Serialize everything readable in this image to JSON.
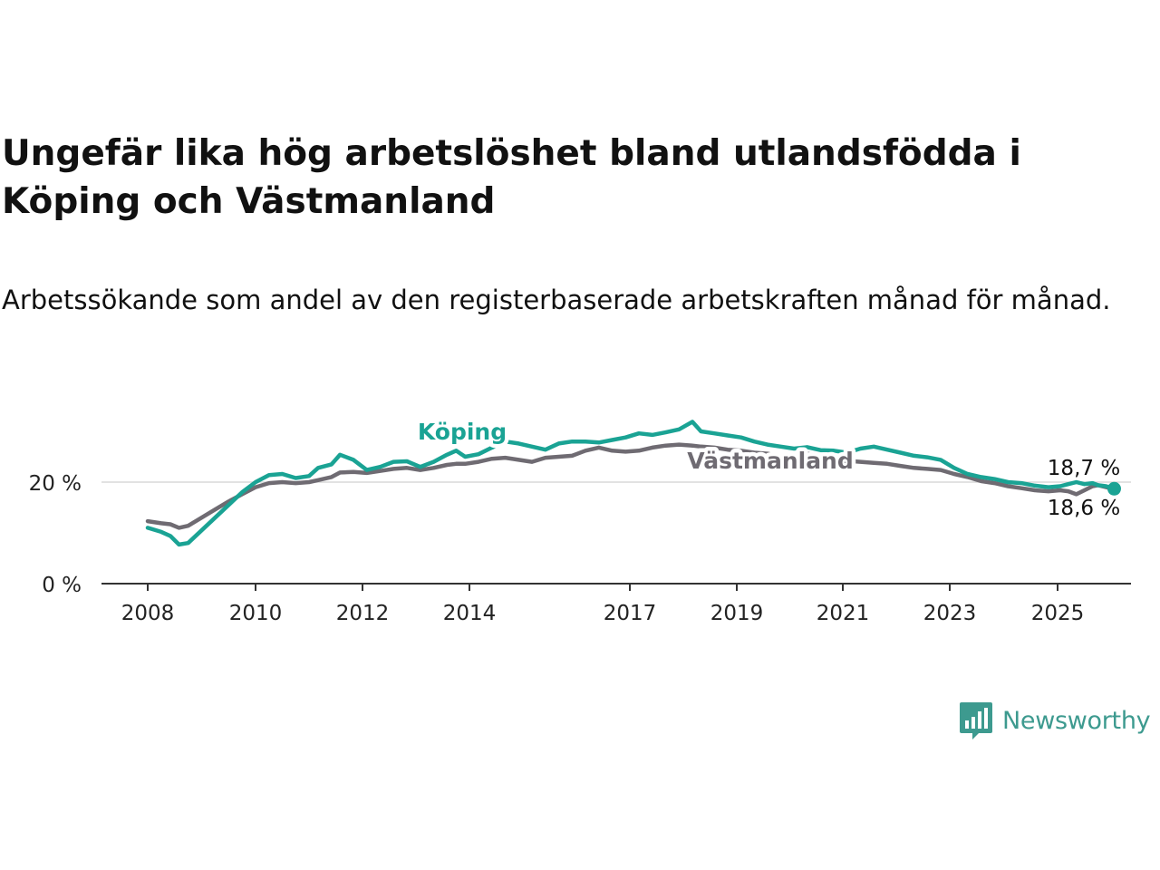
{
  "title": "Ungefär lika hög arbetslöshet bland utlandsfödda i Köping och Västmanland",
  "subtitle": "Arbetssökande som andel av den registerbaserade arbetskraften månad för månad.",
  "brand": {
    "name": "Newsworthy",
    "color": "#3d9a8f"
  },
  "chart_data": {
    "type": "line",
    "x_ticks": [
      "2008",
      "2010",
      "2012",
      "2014",
      "2017",
      "2019",
      "2021",
      "2023",
      "2025"
    ],
    "y_ticks": [
      "0 %",
      "20 %"
    ],
    "ylim": [
      0,
      40
    ],
    "xlim": [
      2007.7,
      2026.4
    ],
    "grid": "horizontal at 20 %",
    "series": [
      {
        "name": "Köping",
        "color": "#1aa394",
        "end_label": "18,7 %",
        "points": [
          [
            2008.0,
            11.0
          ],
          [
            2008.25,
            10.2
          ],
          [
            2008.42,
            9.4
          ],
          [
            2008.58,
            7.7
          ],
          [
            2008.75,
            8.0
          ],
          [
            2009.0,
            10.5
          ],
          [
            2009.25,
            13.0
          ],
          [
            2009.5,
            15.5
          ],
          [
            2009.75,
            18.0
          ],
          [
            2010.0,
            20.0
          ],
          [
            2010.25,
            21.4
          ],
          [
            2010.5,
            21.6
          ],
          [
            2010.75,
            20.8
          ],
          [
            2011.0,
            21.2
          ],
          [
            2011.17,
            22.8
          ],
          [
            2011.42,
            23.5
          ],
          [
            2011.58,
            25.4
          ],
          [
            2011.83,
            24.4
          ],
          [
            2012.08,
            22.4
          ],
          [
            2012.33,
            23.0
          ],
          [
            2012.58,
            24.0
          ],
          [
            2012.83,
            24.1
          ],
          [
            2013.08,
            23.0
          ],
          [
            2013.33,
            24.0
          ],
          [
            2013.58,
            25.4
          ],
          [
            2013.75,
            26.2
          ],
          [
            2013.92,
            25.0
          ],
          [
            2014.17,
            25.5
          ],
          [
            2014.42,
            26.8
          ],
          [
            2014.67,
            28.0
          ],
          [
            2014.92,
            27.6
          ],
          [
            2015.17,
            27.0
          ],
          [
            2015.42,
            26.4
          ],
          [
            2015.67,
            27.6
          ],
          [
            2015.92,
            28.0
          ],
          [
            2016.17,
            28.0
          ],
          [
            2016.42,
            27.8
          ],
          [
            2016.67,
            28.3
          ],
          [
            2016.92,
            28.8
          ],
          [
            2017.17,
            29.6
          ],
          [
            2017.42,
            29.3
          ],
          [
            2017.67,
            29.8
          ],
          [
            2017.92,
            30.4
          ],
          [
            2018.17,
            31.9
          ],
          [
            2018.33,
            30.0
          ],
          [
            2018.58,
            29.6
          ],
          [
            2018.83,
            29.2
          ],
          [
            2019.08,
            28.8
          ],
          [
            2019.33,
            28.0
          ],
          [
            2019.58,
            27.4
          ],
          [
            2019.83,
            27.0
          ],
          [
            2020.08,
            26.6
          ],
          [
            2020.33,
            26.9
          ],
          [
            2020.58,
            26.3
          ],
          [
            2020.83,
            26.2
          ],
          [
            2021.08,
            25.8
          ],
          [
            2021.33,
            26.6
          ],
          [
            2021.58,
            27.0
          ],
          [
            2021.83,
            26.4
          ],
          [
            2022.08,
            25.8
          ],
          [
            2022.33,
            25.2
          ],
          [
            2022.58,
            24.9
          ],
          [
            2022.83,
            24.4
          ],
          [
            2023.08,
            22.8
          ],
          [
            2023.33,
            21.6
          ],
          [
            2023.58,
            21.0
          ],
          [
            2023.83,
            20.6
          ],
          [
            2024.08,
            20.0
          ],
          [
            2024.33,
            19.8
          ],
          [
            2024.58,
            19.3
          ],
          [
            2024.83,
            19.0
          ],
          [
            2025.08,
            19.2
          ],
          [
            2025.33,
            19.6
          ],
          [
            2025.58,
            20.0
          ],
          [
            2025.83,
            19.6
          ],
          [
            2026.08,
            19.8
          ],
          [
            2026.25,
            19.4
          ],
          [
            2026.5,
            19.2
          ],
          [
            2026.75,
            18.7
          ]
        ]
      },
      {
        "name": "Västmanland",
        "color": "#6f6b72",
        "end_label": "18,6 %",
        "points": [
          [
            2008.0,
            12.3
          ],
          [
            2008.25,
            11.9
          ],
          [
            2008.42,
            11.7
          ],
          [
            2008.58,
            11.0
          ],
          [
            2008.75,
            11.4
          ],
          [
            2009.0,
            13.0
          ],
          [
            2009.25,
            14.6
          ],
          [
            2009.5,
            16.2
          ],
          [
            2009.75,
            17.6
          ],
          [
            2010.0,
            19.0
          ],
          [
            2010.25,
            19.8
          ],
          [
            2010.5,
            20.0
          ],
          [
            2010.75,
            19.8
          ],
          [
            2011.0,
            20.0
          ],
          [
            2011.17,
            20.4
          ],
          [
            2011.42,
            21.0
          ],
          [
            2011.58,
            21.9
          ],
          [
            2011.83,
            22.0
          ],
          [
            2012.08,
            21.8
          ],
          [
            2012.33,
            22.2
          ],
          [
            2012.58,
            22.6
          ],
          [
            2012.83,
            22.8
          ],
          [
            2013.08,
            22.4
          ],
          [
            2013.33,
            22.8
          ],
          [
            2013.58,
            23.4
          ],
          [
            2013.75,
            23.6
          ],
          [
            2013.92,
            23.6
          ],
          [
            2014.17,
            24.0
          ],
          [
            2014.42,
            24.6
          ],
          [
            2014.67,
            24.8
          ],
          [
            2014.92,
            24.4
          ],
          [
            2015.17,
            24.0
          ],
          [
            2015.42,
            24.8
          ],
          [
            2015.67,
            25.0
          ],
          [
            2015.92,
            25.2
          ],
          [
            2016.17,
            26.2
          ],
          [
            2016.42,
            26.8
          ],
          [
            2016.67,
            26.2
          ],
          [
            2016.92,
            26.0
          ],
          [
            2017.17,
            26.2
          ],
          [
            2017.42,
            26.8
          ],
          [
            2017.67,
            27.2
          ],
          [
            2017.92,
            27.4
          ],
          [
            2018.17,
            27.2
          ],
          [
            2018.33,
            27.0
          ],
          [
            2018.58,
            26.8
          ],
          [
            2018.83,
            26.4
          ],
          [
            2019.08,
            26.2
          ],
          [
            2019.33,
            25.8
          ],
          [
            2019.58,
            25.6
          ],
          [
            2019.83,
            25.0
          ],
          [
            2020.08,
            25.2
          ],
          [
            2020.33,
            25.6
          ],
          [
            2020.58,
            25.0
          ],
          [
            2020.83,
            24.6
          ],
          [
            2021.08,
            24.2
          ],
          [
            2021.33,
            24.0
          ],
          [
            2021.58,
            23.8
          ],
          [
            2021.83,
            23.6
          ],
          [
            2022.08,
            23.2
          ],
          [
            2022.33,
            22.8
          ],
          [
            2022.58,
            22.6
          ],
          [
            2022.83,
            22.4
          ],
          [
            2023.08,
            21.6
          ],
          [
            2023.33,
            21.0
          ],
          [
            2023.58,
            20.2
          ],
          [
            2023.83,
            19.8
          ],
          [
            2024.08,
            19.2
          ],
          [
            2024.33,
            18.8
          ],
          [
            2024.58,
            18.4
          ],
          [
            2024.83,
            18.2
          ],
          [
            2025.08,
            18.4
          ],
          [
            2025.33,
            18.2
          ],
          [
            2025.58,
            17.6
          ],
          [
            2025.83,
            18.4
          ],
          [
            2026.08,
            19.2
          ],
          [
            2026.25,
            19.4
          ],
          [
            2026.5,
            19.0
          ],
          [
            2026.75,
            18.6
          ]
        ]
      }
    ]
  }
}
